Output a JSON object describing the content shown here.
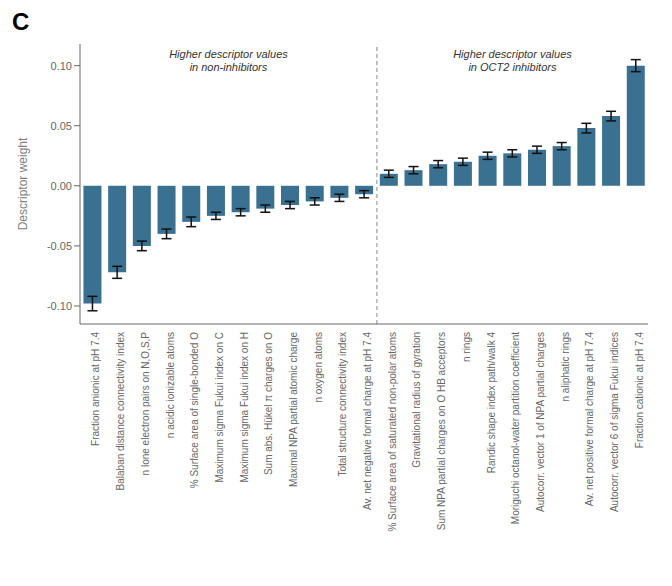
{
  "chart_data": {
    "type": "bar",
    "panel_label": "C",
    "ylabel": "Descriptor weight",
    "categories": [
      "Fraction anionic at pH 7.4",
      "Balaban distance connectivity index",
      "n lone electron pairs on N,O,S,P",
      "n acidic ionizable atoms",
      "% Surface area of single-bonded O",
      "Maximum sigma Fukui index on C",
      "Maximum sigma Fukui index on H",
      "Sum abs. Hükel π charges on O",
      "Maximal NPA partial atomic charge",
      "n oxygen atoms",
      "Total structure connectivity index",
      "Av. net negative formal charge at pH 7.4",
      "% Surface area of saturated non-polar atoms",
      "Gravitational radius of gyration",
      "Sum NPA partial charges on O HB acceptors",
      "n rings",
      "Randic shape index path/walk 4",
      "Moriguchi octanol-water partition coefficient",
      "Autocorr. vector 1 of NPA partial charges",
      "n aliphatic rings",
      "Av. net positive formal charge at pH 7.4",
      "Autocorr. vector 6 of sigma Fukui indices",
      "Fraction cationic at pH 7.4"
    ],
    "values": [
      -0.098,
      -0.072,
      -0.05,
      -0.04,
      -0.03,
      -0.025,
      -0.022,
      -0.019,
      -0.016,
      -0.013,
      -0.01,
      -0.007,
      0.01,
      0.013,
      0.018,
      0.02,
      0.025,
      0.027,
      0.03,
      0.033,
      0.048,
      0.058,
      0.1
    ],
    "error_low": [
      0.006,
      0.005,
      0.004,
      0.004,
      0.004,
      0.003,
      0.003,
      0.003,
      0.003,
      0.003,
      0.003,
      0.003,
      0.003,
      0.003,
      0.003,
      0.003,
      0.003,
      0.003,
      0.003,
      0.003,
      0.004,
      0.004,
      0.005
    ],
    "error_high": [
      0.006,
      0.005,
      0.004,
      0.004,
      0.004,
      0.003,
      0.003,
      0.003,
      0.003,
      0.003,
      0.003,
      0.003,
      0.003,
      0.003,
      0.003,
      0.003,
      0.003,
      0.003,
      0.003,
      0.003,
      0.004,
      0.004,
      0.005
    ],
    "color": "#3a7090",
    "ylim": [
      -0.115,
      0.118
    ],
    "yticks": [
      {
        "value": -0.1,
        "label": "-0.10"
      },
      {
        "value": -0.05,
        "label": "-0.05"
      },
      {
        "value": 0.0,
        "label": "0.00"
      },
      {
        "value": 0.05,
        "label": "0.05"
      },
      {
        "value": 0.1,
        "label": "0.10"
      }
    ],
    "annotations": [
      "Higher descriptor values\nin non-inhibitors",
      "Higher descriptor values\nin OCT2 inhibitors"
    ],
    "divider": 11.5,
    "grid": false
  }
}
